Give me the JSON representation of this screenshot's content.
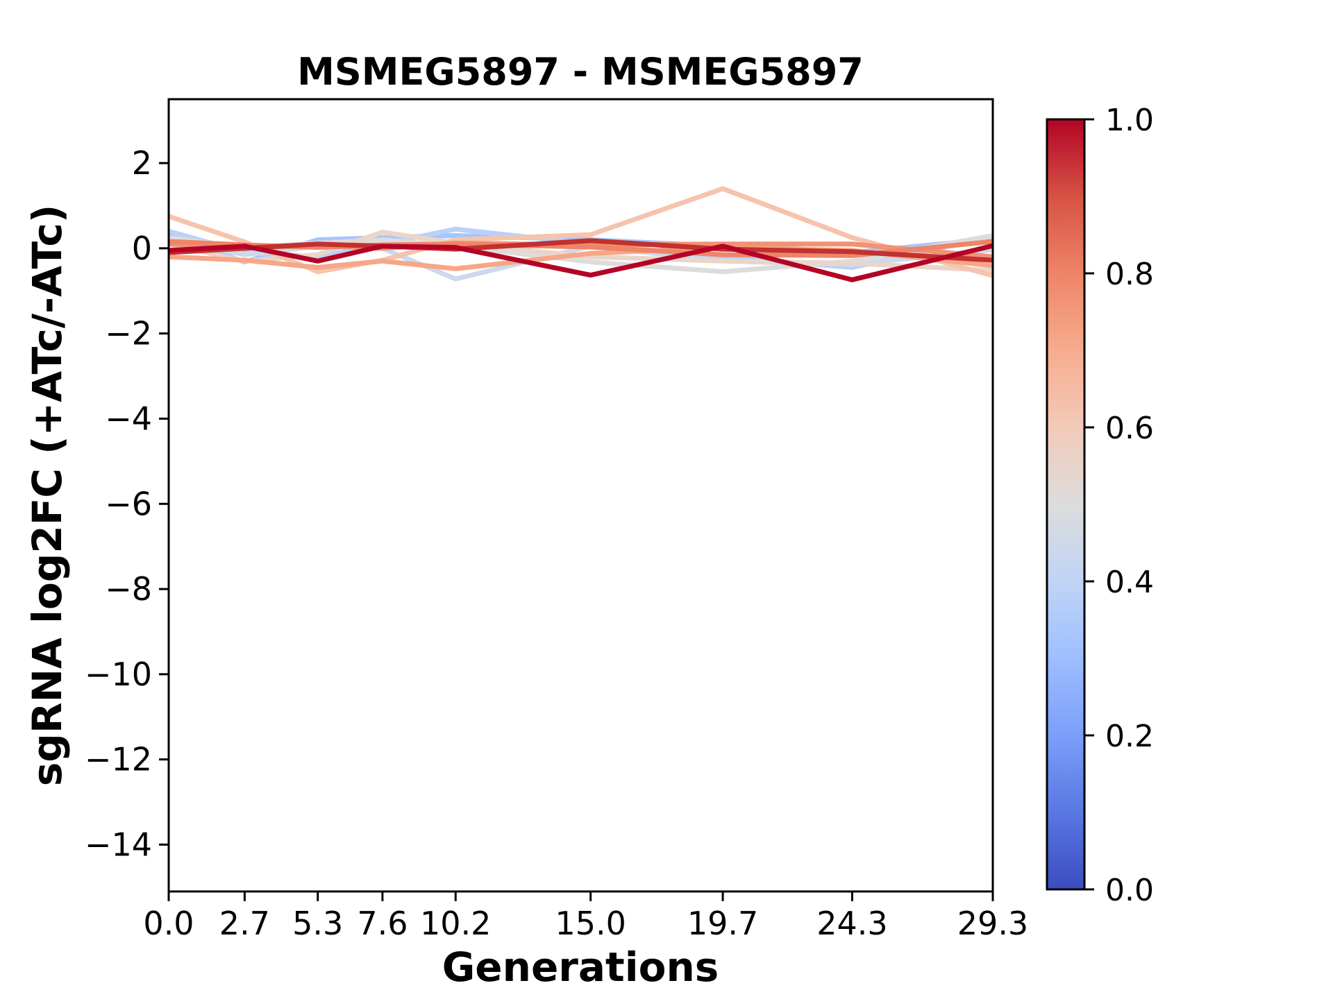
{
  "page": {
    "background": "#ffffff"
  },
  "chart_data": {
    "type": "line",
    "title": "MSMEG5897 - MSMEG5897",
    "xlabel": "Generations",
    "ylabel": "sgRNA log2FC (+ATc/-ATc)",
    "x": [
      0.0,
      2.7,
      5.3,
      7.6,
      10.2,
      15.0,
      19.7,
      24.3,
      29.3
    ],
    "xtick_labels": [
      "0.0",
      "2.7",
      "5.3",
      "7.6",
      "10.2",
      "15.0",
      "19.7",
      "24.3",
      "29.3"
    ],
    "ytick_values": [
      2,
      0,
      -2,
      -4,
      -6,
      -8,
      -10,
      -12,
      -14
    ],
    "ytick_labels": [
      "2",
      "0",
      "−2",
      "−4",
      "−6",
      "−8",
      "−10",
      "−12",
      "−14"
    ],
    "xlim": [
      0,
      29.3
    ],
    "ylim": [
      -15.1,
      3.5
    ],
    "grid": false,
    "line_width": 7,
    "series": [
      {
        "colormap_value": 0.35,
        "color": "#a7c5fe",
        "values": [
          0.3,
          -0.32,
          0.2,
          0.25,
          0.3,
          0.2,
          0.05,
          -0.1,
          0.22
        ]
      },
      {
        "colormap_value": 0.4,
        "color": "#bad0f8",
        "values": [
          0.4,
          -0.1,
          -0.2,
          0.1,
          0.45,
          0.1,
          -0.2,
          -0.45,
          0.28
        ]
      },
      {
        "colormap_value": 0.45,
        "color": "#cdd9ec",
        "values": [
          0.2,
          -0.15,
          0.05,
          0.0,
          -0.72,
          0.05,
          -0.3,
          -0.38,
          -0.03
        ]
      },
      {
        "colormap_value": 0.5,
        "color": "#dddcdc",
        "values": [
          0.25,
          0.02,
          0.12,
          0.2,
          0.05,
          -0.32,
          -0.55,
          -0.3,
          0.3
        ]
      },
      {
        "colormap_value": 0.55,
        "color": "#ead5c9",
        "values": [
          0.1,
          -0.3,
          -0.15,
          0.38,
          0.12,
          -0.2,
          -0.3,
          -0.35,
          -0.52
        ]
      },
      {
        "colormap_value": 0.6,
        "color": "#f5c4ac",
        "values": [
          0.75,
          0.15,
          -0.55,
          -0.28,
          0.2,
          0.32,
          1.4,
          0.25,
          -0.64
        ]
      },
      {
        "colormap_value": 0.72,
        "color": "#f7a687",
        "values": [
          -0.2,
          -0.28,
          -0.45,
          -0.3,
          -0.48,
          -0.12,
          0.02,
          -0.05,
          -0.41
        ]
      },
      {
        "colormap_value": 0.78,
        "color": "#f29173",
        "values": [
          0.1,
          0.02,
          0.06,
          0.0,
          0.12,
          0.08,
          0.1,
          0.1,
          -0.2
        ]
      },
      {
        "colormap_value": 0.8,
        "color": "#ee8468",
        "values": [
          0.16,
          0.08,
          0.02,
          0.08,
          0.1,
          0.03,
          -0.15,
          -0.17,
          0.16
        ]
      },
      {
        "colormap_value": 0.95,
        "color": "#c2302f",
        "values": [
          -0.1,
          0.0,
          0.1,
          0.05,
          -0.02,
          0.18,
          -0.02,
          -0.08,
          -0.28
        ]
      },
      {
        "colormap_value": 1.0,
        "color": "#b40426",
        "values": [
          -0.05,
          0.05,
          -0.3,
          0.05,
          0.02,
          -0.63,
          0.05,
          -0.74,
          0.06
        ]
      }
    ],
    "colorbar": {
      "colormap": "coolwarm",
      "range": [
        0,
        1
      ],
      "tick_values": [
        0.0,
        0.2,
        0.4,
        0.6,
        0.8,
        1.0
      ],
      "tick_labels": [
        "0.0",
        "0.2",
        "0.4",
        "0.6",
        "0.8",
        "1.0"
      ],
      "gradient_stops": [
        {
          "pos": 0.0,
          "color": "#3b4cc0"
        },
        {
          "pos": 0.1,
          "color": "#5977e3"
        },
        {
          "pos": 0.2,
          "color": "#7b9ff9"
        },
        {
          "pos": 0.3,
          "color": "#9ebeff"
        },
        {
          "pos": 0.4,
          "color": "#c0d4f5"
        },
        {
          "pos": 0.5,
          "color": "#dddcdc"
        },
        {
          "pos": 0.6,
          "color": "#f2cab9"
        },
        {
          "pos": 0.7,
          "color": "#f7ac8e"
        },
        {
          "pos": 0.8,
          "color": "#ee8468"
        },
        {
          "pos": 0.9,
          "color": "#d65244"
        },
        {
          "pos": 1.0,
          "color": "#b40426"
        }
      ]
    }
  }
}
